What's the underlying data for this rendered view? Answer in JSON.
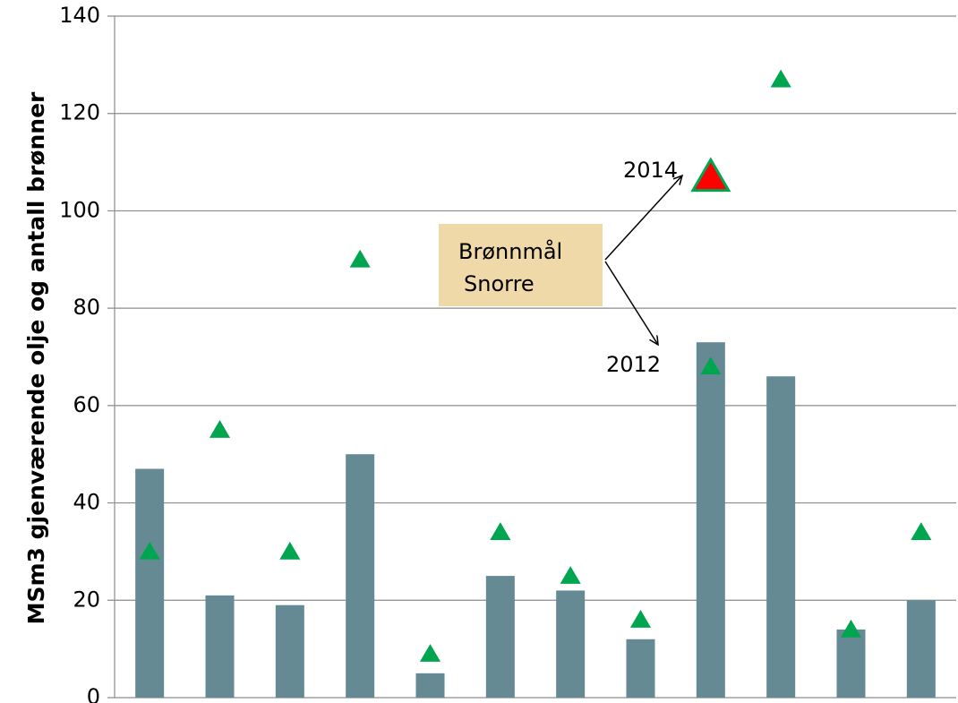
{
  "chart_data": {
    "type": "bar",
    "ylabel": "MSm3 gjenværende olje og antall brønner",
    "categories": [
      null,
      null,
      null,
      null,
      null,
      null,
      null,
      null,
      null,
      null,
      null,
      null
    ],
    "series": [
      {
        "type": "bar",
        "color": "#668a94",
        "values": [
          47,
          21,
          19,
          50,
          5,
          25,
          22,
          12,
          73,
          66,
          14,
          20
        ]
      },
      {
        "type": "scatter",
        "marker": "triangle",
        "color": "#00a550",
        "values": [
          30,
          55,
          30,
          90,
          9,
          34,
          25,
          16,
          68,
          127,
          14,
          34
        ]
      }
    ],
    "highlight": {
      "category_index": 8,
      "value": 107,
      "color": "#ff0000",
      "edge_color": "#00a550"
    },
    "annotations": {
      "box": [
        "Brønnmål",
        "Snorre"
      ],
      "box_color": "#f0d9a8",
      "upper": "2014",
      "lower": "2012"
    },
    "ylim": [
      0,
      140
    ],
    "yticks": [
      0,
      20,
      40,
      60,
      80,
      100,
      120,
      140
    ],
    "grid": true
  }
}
